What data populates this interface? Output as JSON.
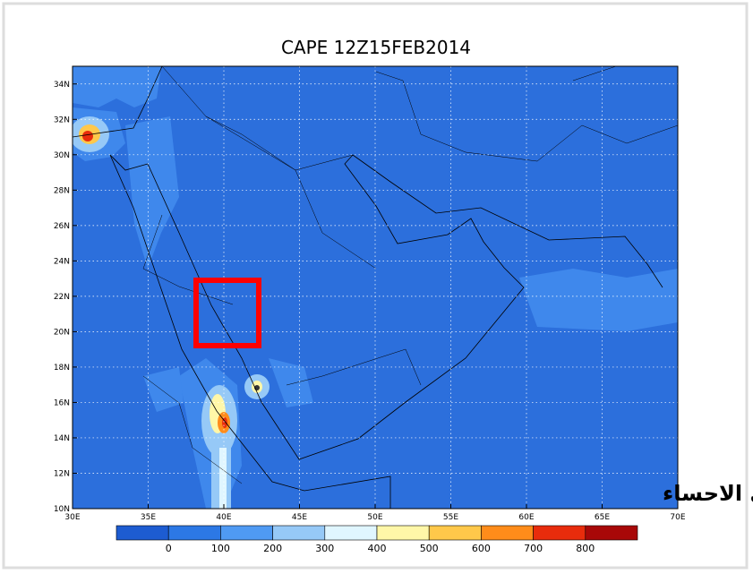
{
  "map": {
    "title": "CAPE 12Z15FEB2014",
    "lon_labels": [
      "30E",
      "35E",
      "40E",
      "45E",
      "50E",
      "55E",
      "60E",
      "65E",
      "70E"
    ],
    "lat_labels": [
      "10N",
      "12N",
      "14N",
      "16N",
      "18N",
      "20N",
      "22N",
      "24N",
      "26N",
      "28N",
      "30N",
      "32N",
      "34N"
    ],
    "colorbar": {
      "colors": [
        "#1d5cd1",
        "#2c78e5",
        "#4f9af3",
        "#96c9f7",
        "#e0f6ff",
        "#fff7a8",
        "#ffc84a",
        "#ff8c1a",
        "#e82c0c",
        "#a80808"
      ],
      "labels": [
        0,
        100,
        200,
        300,
        400,
        500,
        600,
        700,
        800
      ]
    },
    "watermark": "براري الاحساء"
  }
}
